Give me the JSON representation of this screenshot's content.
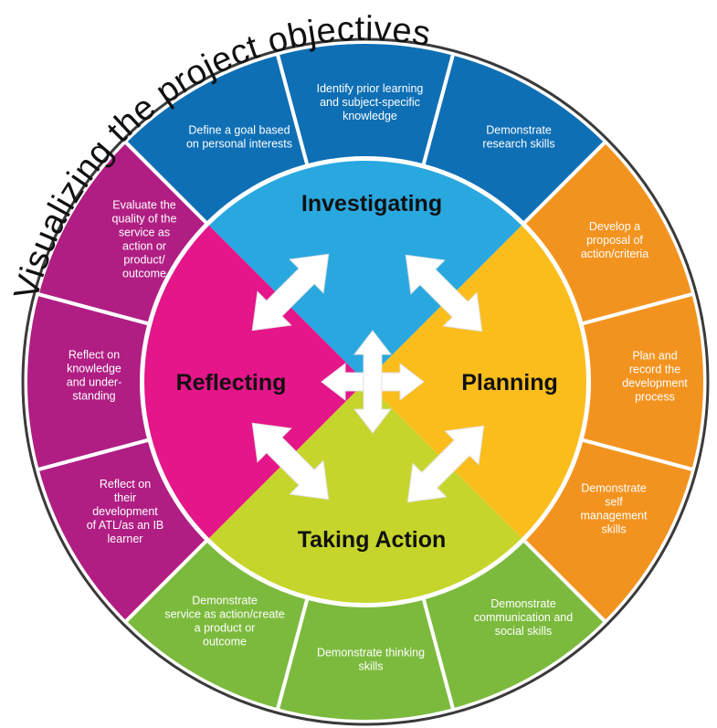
{
  "title": "Visualizing the project objectives",
  "colors": {
    "investigating": "#29a8e0",
    "investigating_outer": "#0e6fb5",
    "planning": "#fbbd1c",
    "planning_outer": "#f3931f",
    "taking_action": "#c6d52b",
    "taking_action_outer": "#7cba3d",
    "reflecting": "#e5158a",
    "reflecting_outer": "#b01e83"
  },
  "quadrants": {
    "investigating": "Investigating",
    "planning": "Planning",
    "taking_action": "Taking Action",
    "reflecting": "Reflecting"
  },
  "objectives": {
    "investigating": [
      [
        "Define a goal based",
        "on personal interests"
      ],
      [
        "Identify prior learning",
        "and subject-specific",
        "knowledge"
      ],
      [
        "Demonstrate",
        "research skills"
      ]
    ],
    "planning": [
      [
        "Develop a",
        "proposal of",
        "action/criteria"
      ],
      [
        "Plan and",
        "record the",
        "development",
        "process"
      ],
      [
        "Demonstrate",
        "self",
        "management",
        "skills"
      ]
    ],
    "taking_action": [
      [
        "Demonstrate",
        "communication and",
        "social skills"
      ],
      [
        "Demonstrate thinking",
        "skills"
      ],
      [
        "Demonstrate",
        "service as action/create",
        "a product or",
        "outcome"
      ]
    ],
    "reflecting": [
      [
        "Reflect on",
        "their",
        "development",
        "of ATL/as an IB",
        "learner"
      ],
      [
        "Reflect on",
        "knowledge",
        "and under-",
        "standing"
      ],
      [
        "Evaluate the",
        "quality of the",
        "service as",
        "action or",
        "product/",
        "outcome"
      ]
    ]
  }
}
